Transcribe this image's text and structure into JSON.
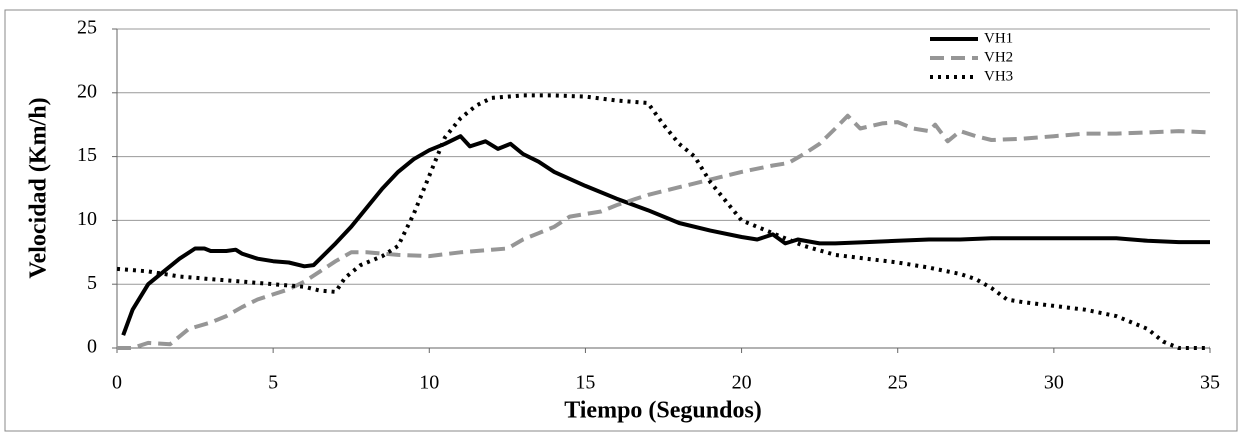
{
  "chart_data": {
    "type": "line",
    "xlabel": "Tiempo (Segundos)",
    "ylabel": "Velocidad (Km/h)",
    "xlim": [
      0,
      35
    ],
    "xticks": [
      0,
      5,
      10,
      15,
      20,
      25,
      30,
      35
    ],
    "ylim": [
      0,
      25
    ],
    "yticks": [
      0,
      5,
      10,
      15,
      20,
      25
    ],
    "grid": true,
    "legend": "upper right",
    "series": [
      {
        "name": "VH1",
        "color": "#000000",
        "dash": "solid",
        "x": [
          0.2,
          0.5,
          1,
          1.5,
          2,
          2.5,
          2.8,
          3,
          3.5,
          3.8,
          4,
          4.5,
          5,
          5.5,
          6,
          6.3,
          7,
          7.5,
          8,
          8.5,
          9,
          9.5,
          10,
          10.5,
          11,
          11.3,
          11.8,
          12.2,
          12.6,
          13,
          13.5,
          14,
          15,
          16,
          17,
          18,
          19,
          20,
          20.5,
          21,
          21.4,
          21.8,
          22.5,
          23,
          24,
          25,
          26,
          27,
          28,
          29,
          30,
          31,
          32,
          33,
          34,
          35
        ],
        "values": [
          1.0,
          3.0,
          5.0,
          6.0,
          7.0,
          7.8,
          7.8,
          7.6,
          7.6,
          7.7,
          7.4,
          7.0,
          6.8,
          6.7,
          6.4,
          6.5,
          8.2,
          9.5,
          11.0,
          12.5,
          13.8,
          14.8,
          15.5,
          16.0,
          16.6,
          15.8,
          16.2,
          15.6,
          16.0,
          15.2,
          14.6,
          13.8,
          12.7,
          11.7,
          10.8,
          9.8,
          9.2,
          8.7,
          8.5,
          8.9,
          8.2,
          8.5,
          8.2,
          8.2,
          8.3,
          8.4,
          8.5,
          8.5,
          8.6,
          8.6,
          8.6,
          8.6,
          8.6,
          8.4,
          8.3,
          8.3
        ]
      },
      {
        "name": "VH2",
        "color": "#969696",
        "dash": "dashed",
        "x": [
          0,
          0.5,
          1,
          1.7,
          2.3,
          3,
          3.5,
          4,
          4.5,
          5,
          5.5,
          6,
          6.5,
          7,
          7.5,
          8,
          9,
          10,
          11,
          12,
          12.5,
          13,
          13.5,
          14,
          14.5,
          15,
          15.5,
          16,
          17,
          18,
          19,
          20,
          21,
          21.5,
          22,
          22.5,
          23,
          23.4,
          23.8,
          24.5,
          25,
          25.5,
          26,
          26.2,
          26.6,
          27,
          27.5,
          28,
          29,
          30,
          31,
          32,
          33,
          34,
          35
        ],
        "values": [
          0,
          0,
          0.4,
          0.3,
          1.5,
          2.0,
          2.5,
          3.2,
          3.8,
          4.2,
          4.6,
          5.2,
          6.0,
          6.8,
          7.5,
          7.5,
          7.3,
          7.2,
          7.5,
          7.7,
          7.8,
          8.5,
          9.0,
          9.5,
          10.3,
          10.5,
          10.7,
          11.2,
          12.0,
          12.6,
          13.2,
          13.8,
          14.3,
          14.5,
          15.2,
          16.0,
          17.2,
          18.2,
          17.2,
          17.6,
          17.7,
          17.2,
          17.0,
          17.5,
          16.2,
          17.0,
          16.6,
          16.3,
          16.4,
          16.6,
          16.8,
          16.8,
          16.9,
          17.0,
          16.9
        ]
      },
      {
        "name": "VH3",
        "color": "#000000",
        "dash": "dotted",
        "x": [
          0,
          1,
          2,
          3,
          4,
          5,
          6,
          6.5,
          7,
          7.3,
          7.8,
          8.5,
          9,
          9.5,
          10,
          10.5,
          11,
          11.5,
          12,
          13,
          14,
          15,
          16,
          17,
          17.5,
          18,
          18.5,
          19,
          19.5,
          20,
          21,
          22,
          23,
          24,
          25,
          26,
          27,
          27.5,
          28,
          28.5,
          29,
          30,
          31,
          32,
          33,
          33.5,
          34,
          35
        ],
        "values": [
          6.2,
          6.0,
          5.6,
          5.4,
          5.2,
          5.0,
          4.8,
          4.5,
          4.4,
          5.5,
          6.5,
          7.2,
          8.0,
          10.5,
          13.5,
          16.5,
          18.0,
          19.0,
          19.6,
          19.8,
          19.8,
          19.7,
          19.4,
          19.2,
          17.5,
          16.0,
          15.0,
          13.0,
          11.5,
          10.0,
          9.0,
          8.0,
          7.3,
          7.0,
          6.7,
          6.3,
          5.8,
          5.4,
          4.7,
          3.8,
          3.6,
          3.3,
          3.0,
          2.5,
          1.5,
          0.5,
          0,
          0
        ]
      }
    ]
  }
}
